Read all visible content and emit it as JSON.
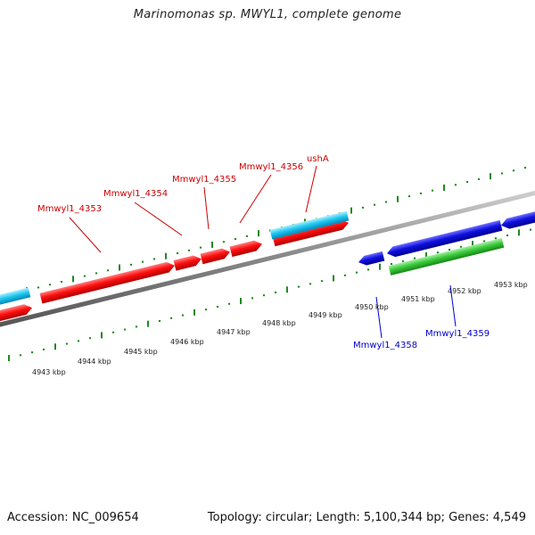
{
  "title": "Marinomonas sp. MWYL1, complete genome",
  "footer": {
    "accession": "Accession: NC_009654",
    "summary": "Topology: circular; Length: 5,100,344 bp; Genes: 4,549"
  },
  "colors": {
    "forward_gene": "#ff1010",
    "reverse_gene": "#1010e0",
    "rna_gene_cyan": "#22c8f0",
    "rna_gene_green": "#3ccc3c",
    "backbone": "#8c8c8c",
    "tick": "#1f8a1f",
    "label_forward": "#cc0000",
    "label_reverse": "#0000cc"
  },
  "scale": {
    "unit": "kbp",
    "tick_labels": [
      "4943 kbp",
      "4944 kbp",
      "4945 kbp",
      "4946 kbp",
      "4947 kbp",
      "4948 kbp",
      "4949 kbp",
      "4950 kbp",
      "4951 kbp",
      "4952 kbp",
      "4953 kbp"
    ]
  },
  "gene_labels": {
    "forward": [
      "Mmwyl1_4353",
      "Mmwyl1_4354",
      "Mmwyl1_4355",
      "Mmwyl1_4356",
      "ushA"
    ],
    "reverse": [
      "Mmwyl1_4358",
      "Mmwyl1_4359"
    ]
  }
}
